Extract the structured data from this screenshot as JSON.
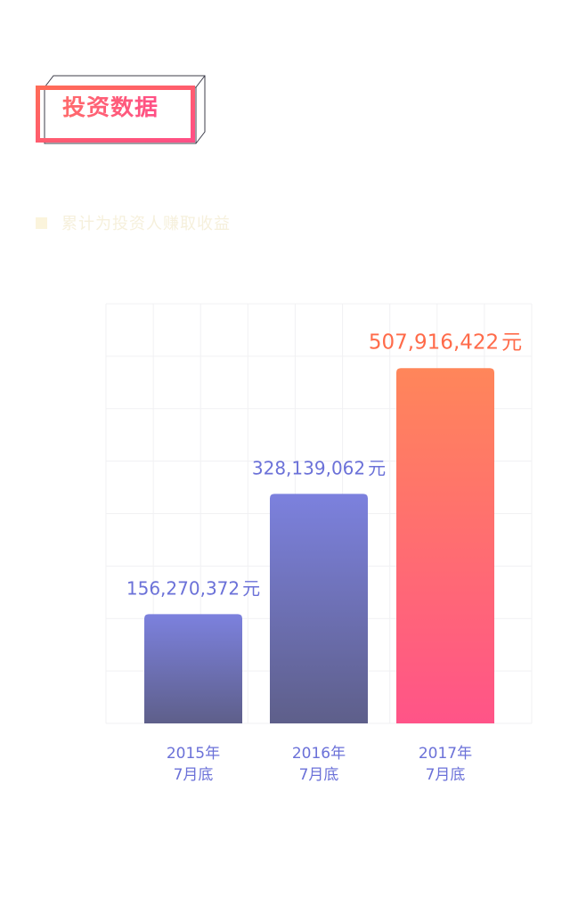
{
  "header": {
    "title": "投资数据"
  },
  "subtitle": {
    "text": "累计为投资人赚取收益"
  },
  "colors": {
    "accent_orange": "#ff6b57",
    "accent_pink": "#ff4f86",
    "bar_purple_top": "#7c81de",
    "bar_purple_bottom": "#5e5f8a",
    "bar_highlight_top": "#ff865a",
    "bar_highlight_bottom": "#ff5488",
    "value_label_purple": "#6b71d8",
    "value_label_orange": "#ff6b4a",
    "axis_label": "#6b71d8",
    "grid": "#f1f1f3"
  },
  "chart_data": {
    "type": "bar",
    "title": "",
    "xlabel": "",
    "ylabel": "",
    "categories": [
      {
        "line1": "2015年",
        "line2": "7月底"
      },
      {
        "line1": "2016年",
        "line2": "7月底"
      },
      {
        "line1": "2017年",
        "line2": "7月底"
      }
    ],
    "values": [
      156270372,
      328139062,
      507916422
    ],
    "value_labels": [
      "156,270,372",
      "328,139,062",
      "507,916,422"
    ],
    "unit": "元",
    "highlight_index": 2,
    "ylim": [
      0,
      600000000
    ],
    "grid": true
  }
}
